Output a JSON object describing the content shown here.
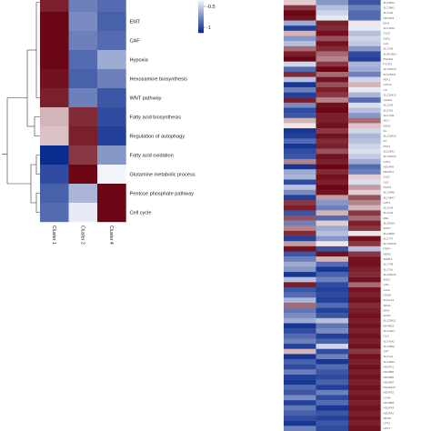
{
  "chart_data": [
    {
      "type": "heatmap",
      "name": "pathway-heatmap",
      "row_labels": [
        "",
        "EMT",
        "CAF",
        "Hypoxia",
        "Hexosamine biosynthesis",
        "WNT pathway",
        "Fatty acid biosynthesis",
        "Regulation of autophagy",
        "Fatty acid oxidation",
        "Glutamine metabolic process",
        "Pentose phosphate pathway",
        "Cell cycle"
      ],
      "column_labels": [
        "Cluster 1",
        "Cluster 2",
        "Cluster 4"
      ],
      "values": [
        [
          0.9,
          -0.6,
          -0.7
        ],
        [
          1.0,
          -0.55,
          -0.75
        ],
        [
          1.0,
          -0.6,
          -0.7
        ],
        [
          1.0,
          -0.7,
          -0.4
        ],
        [
          0.95,
          -0.75,
          -0.6
        ],
        [
          0.9,
          -0.6,
          -0.8
        ],
        [
          0.3,
          0.85,
          -0.85
        ],
        [
          0.25,
          0.9,
          -0.9
        ],
        [
          -1.0,
          0.8,
          -0.5
        ],
        [
          -0.85,
          1.0,
          -0.05
        ],
        [
          -0.75,
          -0.35,
          1.0
        ],
        [
          -0.7,
          -0.1,
          1.0
        ]
      ],
      "color_scale": {
        "low": "#0b2c8f",
        "mid": "#ffffff",
        "high": "#6b0614",
        "min": -1,
        "max": 1
      },
      "legend_ticks": [
        "-0.5",
        "-1"
      ]
    },
    {
      "type": "heatmap",
      "name": "gene-heatmap",
      "column_count": 3,
      "row_labels": [
        "SLC38A2",
        "SLC38A1",
        "SLC1A5",
        "NDUFS3",
        "IDH2",
        "SLC16A3",
        "GLS2",
        "OLR1",
        "GLS",
        "SLC7A5",
        "ALDH18A1",
        "PHGDH",
        "PYCR1",
        "SLC25A12",
        "SLC25A11",
        "PDK1",
        "CPT1A",
        "CS",
        "SLC25A13",
        "GLUD1",
        "SLC1A3",
        "SLC3A2",
        "SLC7A11",
        "ACLY",
        "ASNS",
        "FH",
        "SLC25A10",
        "PC",
        "PCK2",
        "SLC25A1",
        "SLC25A22",
        "GOT1",
        "NDUFA9",
        "NDUFS1",
        "GLS2",
        "GLS",
        "PSAT1",
        "SLC38A5",
        "SLC38A7",
        "GPT2",
        "SLC1A4",
        "SLC1A2",
        "ME1",
        "SLC6A14",
        "GOT2",
        "SLC38A9",
        "SLC7A7",
        "SLC25A18",
        "PSPH",
        "MDH2",
        "SHMT2",
        "SLC7A8",
        "SLC7A1",
        "SLC25A15",
        "ASS1",
        "CAD",
        "GLUL",
        "OGDH",
        "SUCLG1",
        "SDHA",
        "IDH1",
        "ACO2",
        "SLC25A21",
        "MTHFD2",
        "SLC16A1",
        "GLS",
        "SLC43A2",
        "SLC38A3",
        "GPT",
        "SLC1A1",
        "SLC38A4",
        "NDUFV1",
        "NDUFB5",
        "NDUFB6",
        "NDUFA4",
        "NDUFA10",
        "NDUFS2",
        "COX4",
        "NDUFB8",
        "NDUFS4",
        "NDUFA1",
        "SDHB",
        "CPT2",
        "GOT1"
      ],
      "values": [
        [
          0.2,
          -0.5,
          -0.8
        ],
        [
          0.8,
          -0.3,
          -0.6
        ],
        [
          1.0,
          -0.2,
          -0.7
        ],
        [
          0.95,
          -0.1,
          -0.7
        ],
        [
          -0.4,
          0.9,
          0.1
        ],
        [
          -0.9,
          0.85,
          -0.1
        ],
        [
          0.3,
          0.95,
          -0.3
        ],
        [
          -0.5,
          0.7,
          -0.2
        ],
        [
          -0.3,
          0.95,
          -0.25
        ],
        [
          0.6,
          0.85,
          -0.5
        ],
        [
          0.9,
          0.6,
          -0.85
        ],
        [
          1.0,
          0.5,
          -0.9
        ],
        [
          -0.2,
          0.8,
          -0.35
        ],
        [
          -0.7,
          1.0,
          -0.4
        ],
        [
          0.85,
          0.6,
          -0.6
        ],
        [
          -0.3,
          0.95,
          -0.2
        ],
        [
          -0.95,
          0.7,
          0.3
        ],
        [
          -0.6,
          0.9,
          -0.1
        ],
        [
          -0.9,
          0.8,
          -0.35
        ],
        [
          0.9,
          0.5,
          -0.7
        ],
        [
          -0.55,
          0.95,
          -0.15
        ],
        [
          -0.85,
          1.0,
          -0.3
        ],
        [
          -0.8,
          0.9,
          -0.5
        ],
        [
          0.3,
          0.9,
          0.6
        ],
        [
          0.1,
          0.95,
          0.25
        ],
        [
          -0.95,
          0.8,
          -0.2
        ],
        [
          -0.9,
          0.95,
          -0.35
        ],
        [
          -0.7,
          0.85,
          -0.3
        ],
        [
          -0.95,
          0.9,
          -0.2
        ],
        [
          -0.85,
          0.7,
          -0.15
        ],
        [
          -0.8,
          0.95,
          -0.25
        ],
        [
          0.5,
          0.9,
          -0.4
        ],
        [
          -0.95,
          1.0,
          -0.7
        ],
        [
          -0.4,
          0.85,
          -0.6
        ],
        [
          -0.35,
          0.95,
          0.2
        ],
        [
          -0.85,
          0.9,
          -0.15
        ],
        [
          -0.3,
          1.0,
          0.4
        ],
        [
          -0.55,
          0.95,
          0.2
        ],
        [
          -0.9,
          0.4,
          0.7
        ],
        [
          0.8,
          -0.5,
          0.5
        ],
        [
          0.9,
          -0.6,
          0.3
        ],
        [
          -0.8,
          0.3,
          0.8
        ],
        [
          0.7,
          -0.7,
          0.6
        ],
        [
          -0.6,
          0.2,
          0.9
        ],
        [
          0.5,
          -0.4,
          0.8
        ],
        [
          0.85,
          -0.3,
          0.1
        ],
        [
          -0.9,
          -0.5,
          0.95
        ],
        [
          0.4,
          0.1,
          0.8
        ],
        [
          0.95,
          -0.8,
          -0.3
        ],
        [
          -0.8,
          0.95,
          0.8
        ],
        [
          -0.6,
          0.3,
          0.95
        ],
        [
          -0.4,
          -0.7,
          0.95
        ],
        [
          -0.5,
          -0.95,
          0.9
        ],
        [
          -0.95,
          -0.75,
          0.85
        ],
        [
          -0.3,
          -0.6,
          0.95
        ],
        [
          0.9,
          -0.85,
          0.6
        ],
        [
          -0.8,
          -0.9,
          0.95
        ],
        [
          -0.7,
          -0.85,
          0.9
        ],
        [
          -0.35,
          -0.9,
          0.95
        ],
        [
          0.6,
          -0.7,
          0.85
        ],
        [
          -0.65,
          -0.9,
          0.9
        ],
        [
          -0.55,
          -0.8,
          0.95
        ],
        [
          -0.4,
          -0.3,
          0.9
        ],
        [
          -0.95,
          -0.65,
          0.95
        ],
        [
          -0.85,
          -0.55,
          0.9
        ],
        [
          -0.7,
          -0.9,
          0.95
        ],
        [
          -0.6,
          -0.75,
          0.9
        ],
        [
          -0.9,
          -0.2,
          0.95
        ],
        [
          0.3,
          -0.85,
          0.8
        ],
        [
          -0.95,
          -0.6,
          0.95
        ],
        [
          -0.75,
          -0.95,
          0.9
        ],
        [
          -0.85,
          -0.7,
          0.95
        ],
        [
          -0.6,
          -0.8,
          0.9
        ],
        [
          -0.9,
          -0.85,
          0.95
        ],
        [
          -0.95,
          -0.75,
          0.9
        ],
        [
          -0.7,
          -0.9,
          0.95
        ],
        [
          -0.8,
          -0.6,
          0.9
        ],
        [
          -0.55,
          -0.85,
          0.95
        ],
        [
          -0.9,
          -0.7,
          0.9
        ],
        [
          -0.65,
          -0.95,
          0.95
        ],
        [
          -0.75,
          -0.8,
          0.9
        ],
        [
          -0.85,
          -0.9,
          0.95
        ],
        [
          -0.95,
          -0.8,
          0.9
        ],
        [
          -0.6,
          -0.85,
          0.95
        ]
      ],
      "color_scale": {
        "low": "#0b2c8f",
        "mid": "#ffffff",
        "high": "#6b0614",
        "min": -1,
        "max": 1
      }
    }
  ]
}
